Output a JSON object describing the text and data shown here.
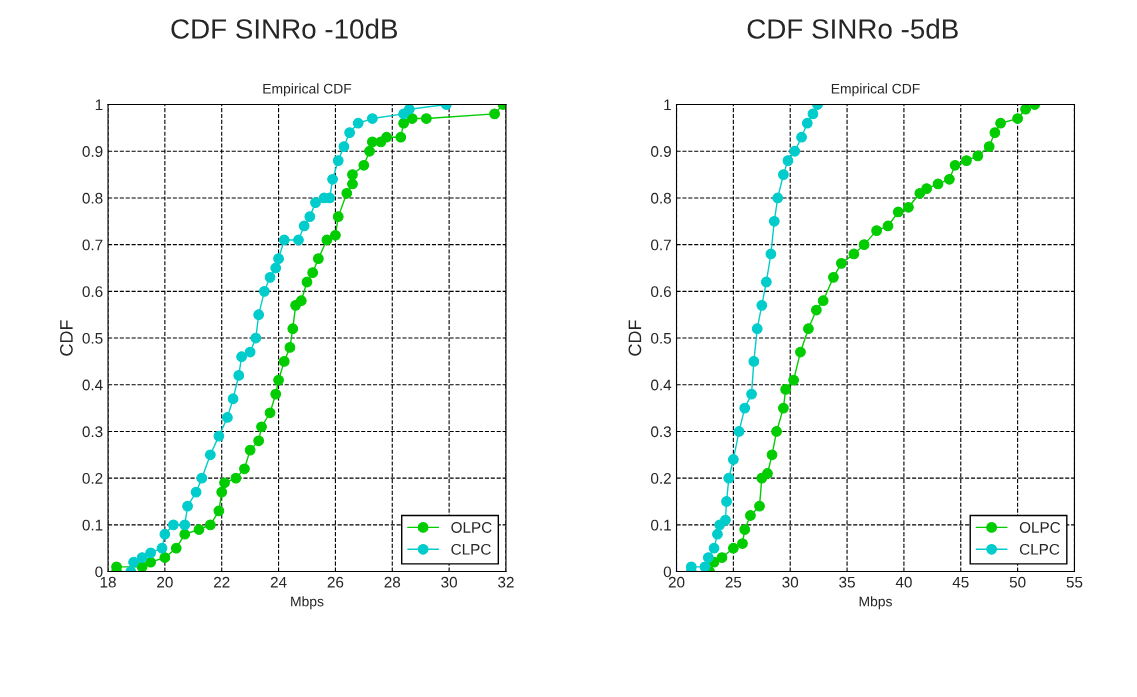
{
  "chart_data": [
    {
      "type": "line",
      "title": "CDF SINRo -10dB",
      "subtitle": "Empirical CDF",
      "xlabel": "Mbps",
      "ylabel": "CDF",
      "xlim": [
        18,
        32
      ],
      "xticks": [
        18,
        20,
        22,
        24,
        26,
        28,
        30,
        32
      ],
      "ylim": [
        0,
        1
      ],
      "yticks": [
        0,
        0.1,
        0.2,
        0.3,
        0.4,
        0.5,
        0.6,
        0.7,
        0.8,
        0.9,
        1
      ],
      "grid": true,
      "legend": "bottom right",
      "marker": "circle",
      "line_style": "solid",
      "series": [
        {
          "name": "OLPC",
          "color": "#00cc00",
          "x": [
            18.3,
            18.3,
            19.2,
            19.5,
            20,
            20.4,
            20.7,
            21.2,
            21.6,
            21.9,
            22,
            22.1,
            22.5,
            22.8,
            23,
            23.3,
            23.4,
            23.7,
            23.9,
            24,
            24.2,
            24.4,
            24.5,
            24.6,
            24.8,
            25,
            25.2,
            25.4,
            25.7,
            26,
            26.1,
            26.4,
            26.6,
            26.6,
            27,
            27.2,
            27.3,
            27.6,
            27.8,
            28.3,
            28.4,
            28.7,
            29.2,
            31.6,
            31.9
          ],
          "values": [
            0,
            0.01,
            0.01,
            0.02,
            0.03,
            0.05,
            0.08,
            0.09,
            0.1,
            0.13,
            0.17,
            0.19,
            0.2,
            0.22,
            0.26,
            0.28,
            0.31,
            0.34,
            0.38,
            0.41,
            0.45,
            0.48,
            0.52,
            0.57,
            0.58,
            0.62,
            0.64,
            0.67,
            0.71,
            0.72,
            0.76,
            0.81,
            0.83,
            0.85,
            0.87,
            0.9,
            0.92,
            0.92,
            0.93,
            0.93,
            0.96,
            0.97,
            0.97,
            0.98,
            1.0
          ]
        },
        {
          "name": "CLPC",
          "color": "#00cccc",
          "x": [
            18.8,
            18.9,
            19.2,
            19.5,
            19.9,
            20,
            20.3,
            20.7,
            20.8,
            21.1,
            21.3,
            21.6,
            21.9,
            22.2,
            22.4,
            22.6,
            22.7,
            23,
            23.2,
            23.3,
            23.5,
            23.7,
            23.9,
            24,
            24.2,
            24.7,
            24.9,
            25.1,
            25.3,
            25.6,
            25.8,
            25.9,
            26.1,
            26.3,
            26.5,
            26.8,
            27.3,
            28.4,
            28.6,
            29.9
          ],
          "values": [
            0,
            0.02,
            0.03,
            0.04,
            0.05,
            0.08,
            0.1,
            0.1,
            0.14,
            0.17,
            0.2,
            0.25,
            0.29,
            0.33,
            0.37,
            0.42,
            0.46,
            0.47,
            0.5,
            0.55,
            0.6,
            0.63,
            0.65,
            0.67,
            0.71,
            0.71,
            0.74,
            0.76,
            0.79,
            0.8,
            0.8,
            0.84,
            0.88,
            0.91,
            0.94,
            0.96,
            0.97,
            0.98,
            0.99,
            1.0
          ]
        }
      ]
    },
    {
      "type": "line",
      "title": "CDF SINRo -5dB",
      "subtitle": "Empirical CDF",
      "xlabel": "Mbps",
      "ylabel": "CDF",
      "xlim": [
        20,
        55
      ],
      "xticks": [
        20,
        25,
        30,
        35,
        40,
        45,
        50,
        55
      ],
      "ylim": [
        0,
        1
      ],
      "yticks": [
        0,
        0.1,
        0.2,
        0.3,
        0.4,
        0.5,
        0.6,
        0.7,
        0.8,
        0.9,
        1
      ],
      "grid": true,
      "legend": "bottom right",
      "marker": "circle",
      "line_style": "solid",
      "series": [
        {
          "name": "OLPC",
          "color": "#00cc00",
          "x": [
            22.9,
            23.3,
            24,
            25,
            25.8,
            26,
            26.5,
            27.3,
            27.5,
            28,
            28.4,
            28.8,
            29.4,
            29.6,
            30.3,
            30.9,
            31.6,
            32.3,
            32.9,
            33.8,
            34.5,
            35.6,
            36.5,
            37.6,
            38.6,
            39.5,
            40.4,
            41.4,
            42,
            43,
            44,
            44.5,
            45.5,
            46.5,
            47.5,
            48,
            48.5,
            50,
            50.7,
            51.5
          ],
          "values": [
            0,
            0.02,
            0.03,
            0.05,
            0.06,
            0.09,
            0.12,
            0.14,
            0.2,
            0.21,
            0.25,
            0.3,
            0.35,
            0.39,
            0.41,
            0.47,
            0.52,
            0.56,
            0.58,
            0.63,
            0.66,
            0.68,
            0.7,
            0.73,
            0.74,
            0.77,
            0.78,
            0.81,
            0.82,
            0.83,
            0.84,
            0.87,
            0.88,
            0.89,
            0.91,
            0.94,
            0.96,
            0.97,
            0.99,
            1.0
          ]
        },
        {
          "name": "CLPC",
          "color": "#00cccc",
          "x": [
            21.3,
            21.3,
            22.5,
            22.8,
            23.3,
            23.6,
            23.8,
            24.3,
            24.4,
            24.6,
            25,
            25.5,
            26,
            26.6,
            26.8,
            27.1,
            27.5,
            27.9,
            28.3,
            28.6,
            28.9,
            29.4,
            29.8,
            30.4,
            31,
            31.5,
            32,
            32.4
          ],
          "values": [
            0,
            0.01,
            0.01,
            0.03,
            0.05,
            0.08,
            0.1,
            0.11,
            0.15,
            0.2,
            0.24,
            0.3,
            0.35,
            0.38,
            0.45,
            0.52,
            0.57,
            0.62,
            0.68,
            0.75,
            0.8,
            0.85,
            0.88,
            0.9,
            0.93,
            0.96,
            0.98,
            1.0
          ]
        }
      ]
    }
  ]
}
